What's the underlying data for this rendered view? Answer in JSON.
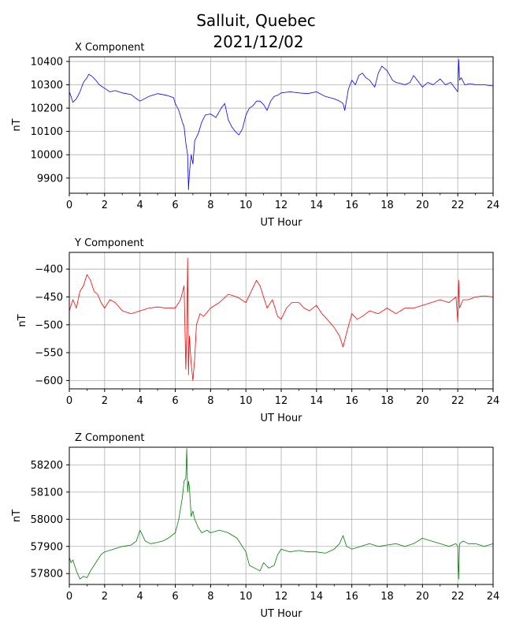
{
  "figure": {
    "title_line1": "Salluit, Quebec",
    "title_line2": "2021/12/02"
  },
  "chart_data": [
    {
      "type": "line",
      "title": "X Component",
      "xlabel": "UT Hour",
      "ylabel": "nT",
      "color": "#0000ff",
      "xlim": [
        0,
        24
      ],
      "ylim": [
        9835,
        10420
      ],
      "xticks": [
        0,
        2,
        4,
        6,
        8,
        10,
        12,
        14,
        16,
        18,
        20,
        22,
        24
      ],
      "yticks": [
        9900,
        10000,
        10100,
        10200,
        10300,
        10400
      ],
      "x": [
        0,
        0.1,
        0.2,
        0.4,
        0.6,
        0.8,
        1.0,
        1.1,
        1.3,
        1.5,
        1.7,
        2.0,
        2.3,
        2.6,
        3.0,
        3.5,
        3.8,
        4.0,
        4.5,
        5.0,
        5.5,
        5.9,
        6.0,
        6.2,
        6.4,
        6.5,
        6.6,
        6.7,
        6.75,
        6.8,
        6.9,
        7.0,
        7.1,
        7.3,
        7.5,
        7.7,
        8.0,
        8.3,
        8.6,
        8.8,
        9.0,
        9.2,
        9.4,
        9.6,
        9.8,
        10.0,
        10.2,
        10.4,
        10.6,
        10.8,
        11.0,
        11.2,
        11.4,
        11.6,
        11.8,
        12.0,
        12.5,
        13.0,
        13.5,
        14.0,
        14.5,
        15.0,
        15.3,
        15.5,
        15.6,
        15.8,
        16.0,
        16.2,
        16.4,
        16.6,
        16.8,
        17.0,
        17.3,
        17.5,
        17.7,
        18.0,
        18.3,
        18.5,
        18.8,
        19.0,
        19.3,
        19.5,
        19.8,
        20.0,
        20.3,
        20.6,
        21.0,
        21.3,
        21.6,
        21.9,
        22.0,
        22.05,
        22.1,
        22.2,
        22.4,
        22.7,
        23.0,
        23.5,
        24.0
      ],
      "values": [
        10270,
        10250,
        10225,
        10240,
        10270,
        10310,
        10330,
        10345,
        10335,
        10320,
        10300,
        10285,
        10270,
        10275,
        10265,
        10258,
        10240,
        10230,
        10250,
        10262,
        10255,
        10245,
        10220,
        10190,
        10140,
        10120,
        10050,
        10000,
        9850,
        9920,
        10000,
        9960,
        10060,
        10090,
        10140,
        10170,
        10175,
        10160,
        10200,
        10220,
        10150,
        10120,
        10100,
        10085,
        10110,
        10170,
        10200,
        10210,
        10230,
        10230,
        10215,
        10190,
        10230,
        10250,
        10255,
        10265,
        10270,
        10265,
        10262,
        10270,
        10250,
        10240,
        10230,
        10220,
        10190,
        10280,
        10320,
        10300,
        10340,
        10350,
        10330,
        10320,
        10290,
        10350,
        10380,
        10360,
        10320,
        10310,
        10305,
        10300,
        10310,
        10340,
        10310,
        10290,
        10310,
        10300,
        10325,
        10300,
        10310,
        10280,
        10270,
        10410,
        10320,
        10330,
        10300,
        10305,
        10300,
        10300,
        10295
      ]
    },
    {
      "type": "line",
      "title": "Y Component",
      "xlabel": "UT Hour",
      "ylabel": "nT",
      "color": "#ff0000",
      "xlim": [
        0,
        24
      ],
      "ylim": [
        -615,
        -370
      ],
      "xticks": [
        0,
        2,
        4,
        6,
        8,
        10,
        12,
        14,
        16,
        18,
        20,
        22,
        24
      ],
      "yticks": [
        -400,
        -450,
        -500,
        -550,
        -600
      ],
      "x": [
        0,
        0.2,
        0.4,
        0.6,
        0.8,
        1.0,
        1.2,
        1.4,
        1.6,
        1.8,
        2.0,
        2.3,
        2.6,
        3.0,
        3.5,
        4.0,
        4.5,
        5.0,
        5.5,
        6.0,
        6.3,
        6.5,
        6.6,
        6.65,
        6.7,
        6.75,
        6.8,
        6.9,
        7.0,
        7.1,
        7.2,
        7.4,
        7.6,
        8.0,
        8.5,
        9.0,
        9.5,
        10.0,
        10.3,
        10.6,
        10.8,
        11.0,
        11.2,
        11.5,
        11.8,
        12.0,
        12.3,
        12.6,
        13.0,
        13.3,
        13.6,
        14.0,
        14.3,
        14.6,
        15.0,
        15.3,
        15.5,
        15.7,
        16.0,
        16.3,
        16.6,
        17.0,
        17.5,
        18.0,
        18.5,
        19.0,
        19.5,
        20.0,
        20.5,
        21.0,
        21.5,
        21.9,
        22.0,
        22.05,
        22.1,
        22.3,
        22.6,
        23.0,
        23.5,
        24.0
      ],
      "values": [
        -475,
        -455,
        -470,
        -440,
        -430,
        -410,
        -420,
        -440,
        -445,
        -460,
        -470,
        -455,
        -460,
        -475,
        -480,
        -475,
        -470,
        -468,
        -470,
        -470,
        -455,
        -430,
        -580,
        -510,
        -380,
        -590,
        -520,
        -570,
        -600,
        -560,
        -500,
        -480,
        -485,
        -470,
        -460,
        -445,
        -450,
        -460,
        -440,
        -420,
        -430,
        -450,
        -470,
        -455,
        -485,
        -490,
        -470,
        -460,
        -460,
        -470,
        -475,
        -465,
        -480,
        -490,
        -505,
        -520,
        -540,
        -515,
        -480,
        -490,
        -485,
        -475,
        -480,
        -470,
        -480,
        -470,
        -470,
        -465,
        -460,
        -455,
        -460,
        -450,
        -495,
        -420,
        -470,
        -455,
        -455,
        -450,
        -448,
        -450
      ]
    },
    {
      "type": "line",
      "title": "Z Component",
      "xlabel": "UT Hour",
      "ylabel": "nT",
      "color": "#008000",
      "xlim": [
        0,
        24
      ],
      "ylim": [
        57760,
        58265
      ],
      "xticks": [
        0,
        2,
        4,
        6,
        8,
        10,
        12,
        14,
        16,
        18,
        20,
        22,
        24
      ],
      "yticks": [
        57800,
        57900,
        58000,
        58100,
        58200
      ],
      "x": [
        0,
        0.1,
        0.2,
        0.4,
        0.6,
        0.8,
        1.0,
        1.2,
        1.5,
        1.8,
        2.0,
        2.5,
        3.0,
        3.5,
        3.8,
        4.0,
        4.3,
        4.6,
        5.0,
        5.3,
        5.6,
        6.0,
        6.2,
        6.4,
        6.5,
        6.6,
        6.65,
        6.7,
        6.75,
        6.8,
        6.9,
        7.0,
        7.1,
        7.3,
        7.5,
        7.8,
        8.0,
        8.5,
        9.0,
        9.5,
        9.8,
        10.0,
        10.2,
        10.5,
        10.8,
        11.0,
        11.3,
        11.6,
        11.8,
        12.0,
        12.5,
        13.0,
        13.5,
        14.0,
        14.5,
        15.0,
        15.3,
        15.5,
        15.7,
        16.0,
        16.5,
        17.0,
        17.5,
        18.0,
        18.5,
        19.0,
        19.5,
        20.0,
        20.5,
        21.0,
        21.5,
        21.9,
        22.0,
        22.05,
        22.1,
        22.3,
        22.6,
        23.0,
        23.5,
        24.0
      ],
      "values": [
        57860,
        57840,
        57850,
        57810,
        57780,
        57790,
        57785,
        57810,
        57840,
        57870,
        57880,
        57890,
        57900,
        57905,
        57920,
        57960,
        57920,
        57910,
        57915,
        57920,
        57930,
        57950,
        58000,
        58080,
        58140,
        58150,
        58260,
        58100,
        58140,
        58120,
        58010,
        58030,
        58000,
        57970,
        57950,
        57960,
        57950,
        57960,
        57950,
        57930,
        57900,
        57880,
        57830,
        57820,
        57810,
        57840,
        57820,
        57830,
        57870,
        57890,
        57880,
        57885,
        57880,
        57880,
        57875,
        57890,
        57910,
        57940,
        57900,
        57890,
        57900,
        57910,
        57900,
        57905,
        57910,
        57900,
        57910,
        57930,
        57920,
        57910,
        57900,
        57910,
        57900,
        57780,
        57910,
        57920,
        57910,
        57910,
        57900,
        57910
      ]
    }
  ]
}
